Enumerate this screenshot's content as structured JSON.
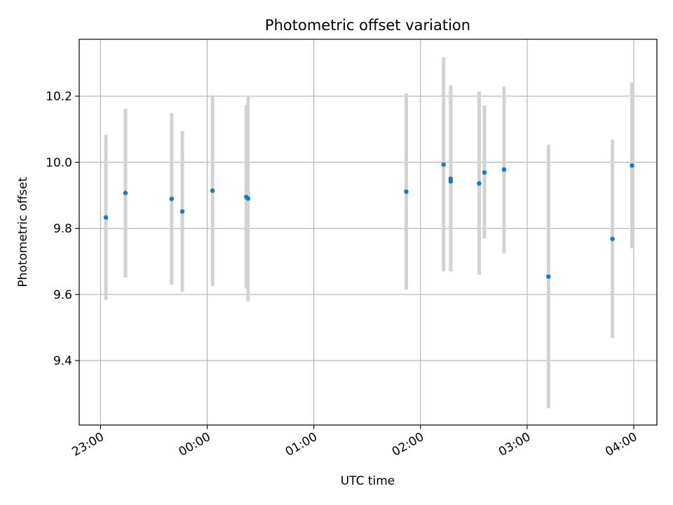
{
  "chart_data": {
    "type": "scatter",
    "title": "Photometric offset variation",
    "xlabel": "UTC time",
    "ylabel": "Photometric offset",
    "xlim": [
      "22:48",
      "04:13"
    ],
    "ylim": [
      9.205,
      10.372
    ],
    "x_ticks": [
      "23:00",
      "00:00",
      "01:00",
      "02:00",
      "03:00",
      "04:00"
    ],
    "y_ticks": [
      "9.4",
      "9.6",
      "9.8",
      "10.0",
      "10.2"
    ],
    "grid": true,
    "marker_color": "#1f77b4",
    "errorbar_color": "#d3d3d3",
    "points": [
      {
        "time": "23:03",
        "value": 9.833,
        "low": 9.584,
        "high": 10.083
      },
      {
        "time": "23:14",
        "value": 9.907,
        "low": 9.651,
        "high": 10.162
      },
      {
        "time": "23:40",
        "value": 9.889,
        "low": 9.63,
        "high": 10.149
      },
      {
        "time": "23:46",
        "value": 9.851,
        "low": 9.608,
        "high": 10.094
      },
      {
        "time": "00:03",
        "value": 9.914,
        "low": 9.626,
        "high": 10.203
      },
      {
        "time": "00:22",
        "value": 9.895,
        "low": 9.619,
        "high": 10.173
      },
      {
        "time": "00:23",
        "value": 9.89,
        "low": 9.58,
        "high": 10.2
      },
      {
        "time": "01:52",
        "value": 9.911,
        "low": 9.615,
        "high": 10.208
      },
      {
        "time": "02:13",
        "value": 9.993,
        "low": 9.67,
        "high": 10.318
      },
      {
        "time": "02:17",
        "value": 9.95,
        "low": 9.67,
        "high": 10.232
      },
      {
        "time": "02:17",
        "value": 9.942,
        "low": 9.67,
        "high": 10.232
      },
      {
        "time": "02:33",
        "value": 9.936,
        "low": 9.66,
        "high": 10.214
      },
      {
        "time": "02:36",
        "value": 9.969,
        "low": 9.769,
        "high": 10.172
      },
      {
        "time": "02:47",
        "value": 9.978,
        "low": 9.726,
        "high": 10.229
      },
      {
        "time": "03:12",
        "value": 9.654,
        "low": 9.256,
        "high": 10.053
      },
      {
        "time": "03:48",
        "value": 9.768,
        "low": 9.468,
        "high": 10.068
      },
      {
        "time": "03:59",
        "value": 9.99,
        "low": 9.74,
        "high": 10.242
      }
    ]
  }
}
